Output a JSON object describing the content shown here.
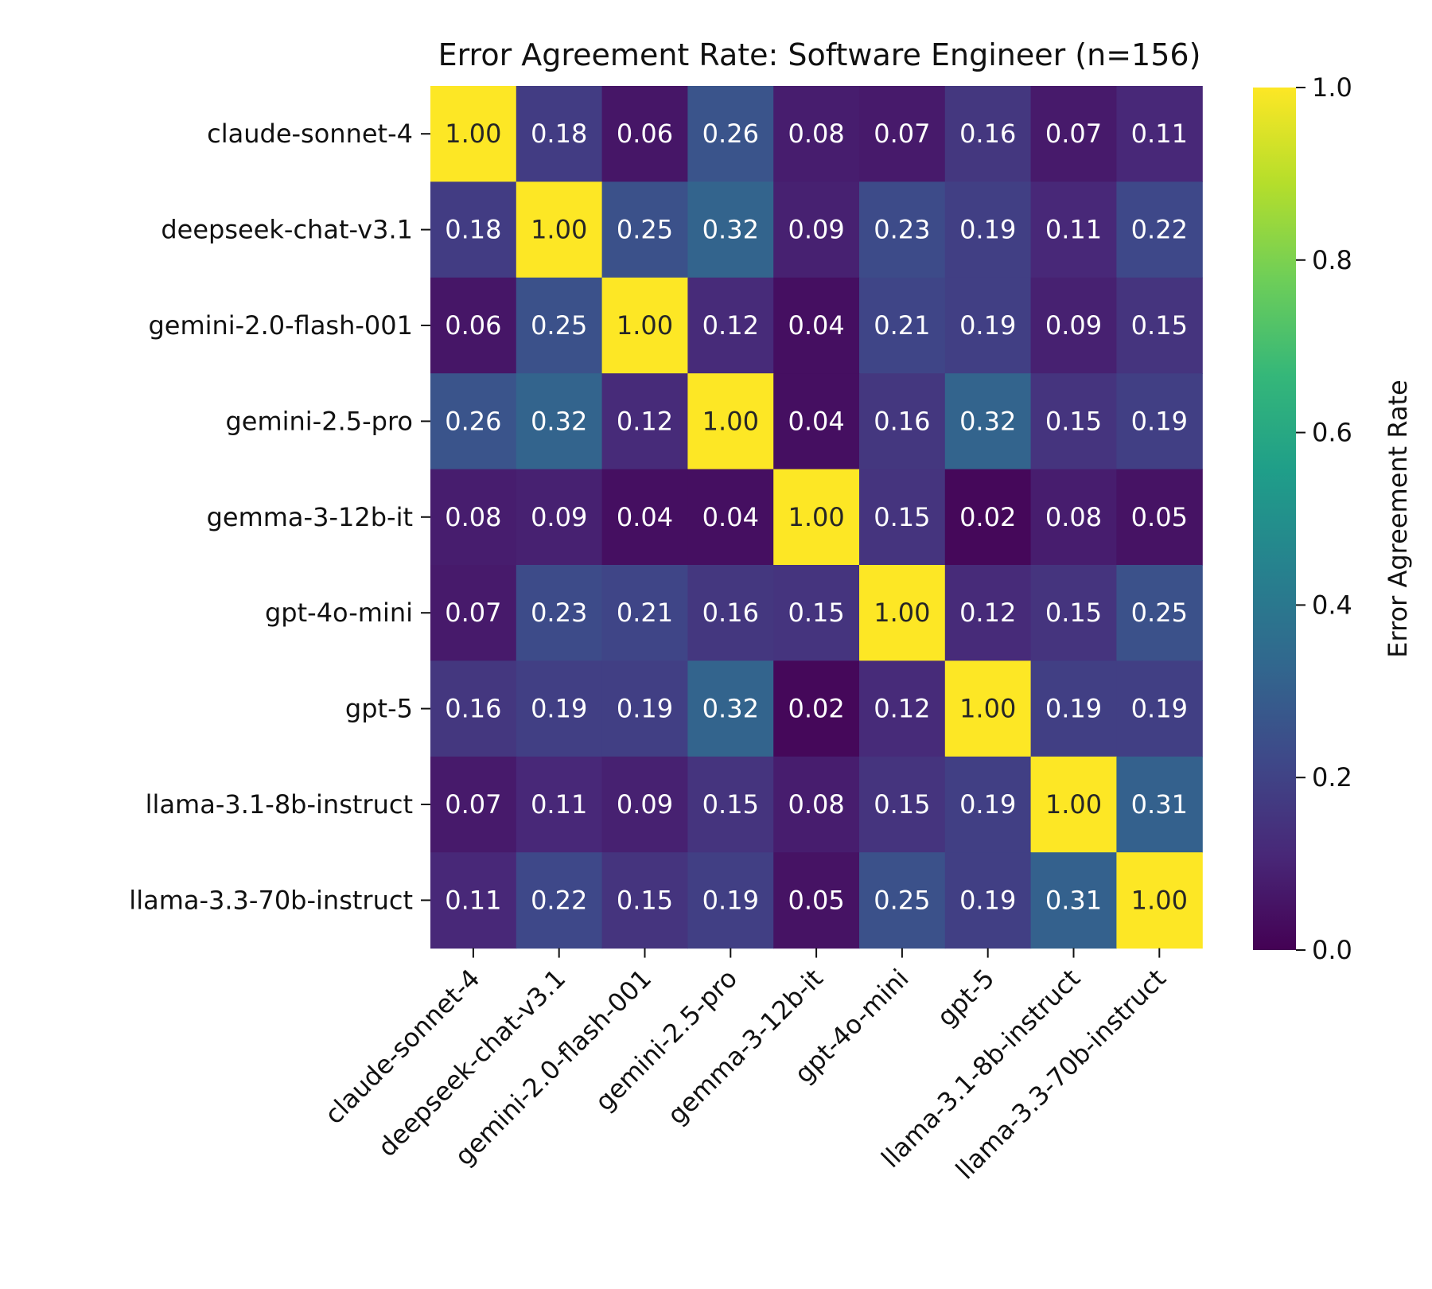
{
  "chart_data": {
    "type": "heatmap",
    "title": "Error Agreement Rate: Software Engineer (n=156)",
    "row_labels": [
      "claude-sonnet-4",
      "deepseek-chat-v3.1",
      "gemini-2.0-flash-001",
      "gemini-2.5-pro",
      "gemma-3-12b-it",
      "gpt-4o-mini",
      "gpt-5",
      "llama-3.1-8b-instruct",
      "llama-3.3-70b-instruct"
    ],
    "col_labels": [
      "claude-sonnet-4",
      "deepseek-chat-v3.1",
      "gemini-2.0-flash-001",
      "gemini-2.5-pro",
      "gemma-3-12b-it",
      "gpt-4o-mini",
      "gpt-5",
      "llama-3.1-8b-instruct",
      "llama-3.3-70b-instruct"
    ],
    "values": [
      [
        1.0,
        0.18,
        0.06,
        0.26,
        0.08,
        0.07,
        0.16,
        0.07,
        0.11
      ],
      [
        0.18,
        1.0,
        0.25,
        0.32,
        0.09,
        0.23,
        0.19,
        0.11,
        0.22
      ],
      [
        0.06,
        0.25,
        1.0,
        0.12,
        0.04,
        0.21,
        0.19,
        0.09,
        0.15
      ],
      [
        0.26,
        0.32,
        0.12,
        1.0,
        0.04,
        0.16,
        0.32,
        0.15,
        0.19
      ],
      [
        0.08,
        0.09,
        0.04,
        0.04,
        1.0,
        0.15,
        0.02,
        0.08,
        0.05
      ],
      [
        0.07,
        0.23,
        0.21,
        0.16,
        0.15,
        1.0,
        0.12,
        0.15,
        0.25
      ],
      [
        0.16,
        0.19,
        0.19,
        0.32,
        0.02,
        0.12,
        1.0,
        0.19,
        0.19
      ],
      [
        0.07,
        0.11,
        0.09,
        0.15,
        0.08,
        0.15,
        0.19,
        1.0,
        0.31
      ],
      [
        0.11,
        0.22,
        0.15,
        0.19,
        0.05,
        0.25,
        0.19,
        0.31,
        1.0
      ]
    ],
    "value_format": "0.00",
    "vmin": 0.0,
    "vmax": 1.0,
    "colormap": "viridis",
    "colorbar": {
      "label": "Error Agreement Rate",
      "ticks": [
        0.0,
        0.2,
        0.4,
        0.6,
        0.8,
        1.0
      ],
      "tick_labels": [
        "0.0",
        "0.2",
        "0.4",
        "0.6",
        "0.8",
        "1.0"
      ]
    }
  },
  "colors": {
    "viridis_stops": [
      "#440154",
      "#482878",
      "#3e4989",
      "#31688e",
      "#26828e",
      "#1f9e89",
      "#35b779",
      "#6ece58",
      "#b5de2b",
      "#fde725"
    ],
    "light_text": "#ffffff",
    "dark_text": "#262626"
  }
}
